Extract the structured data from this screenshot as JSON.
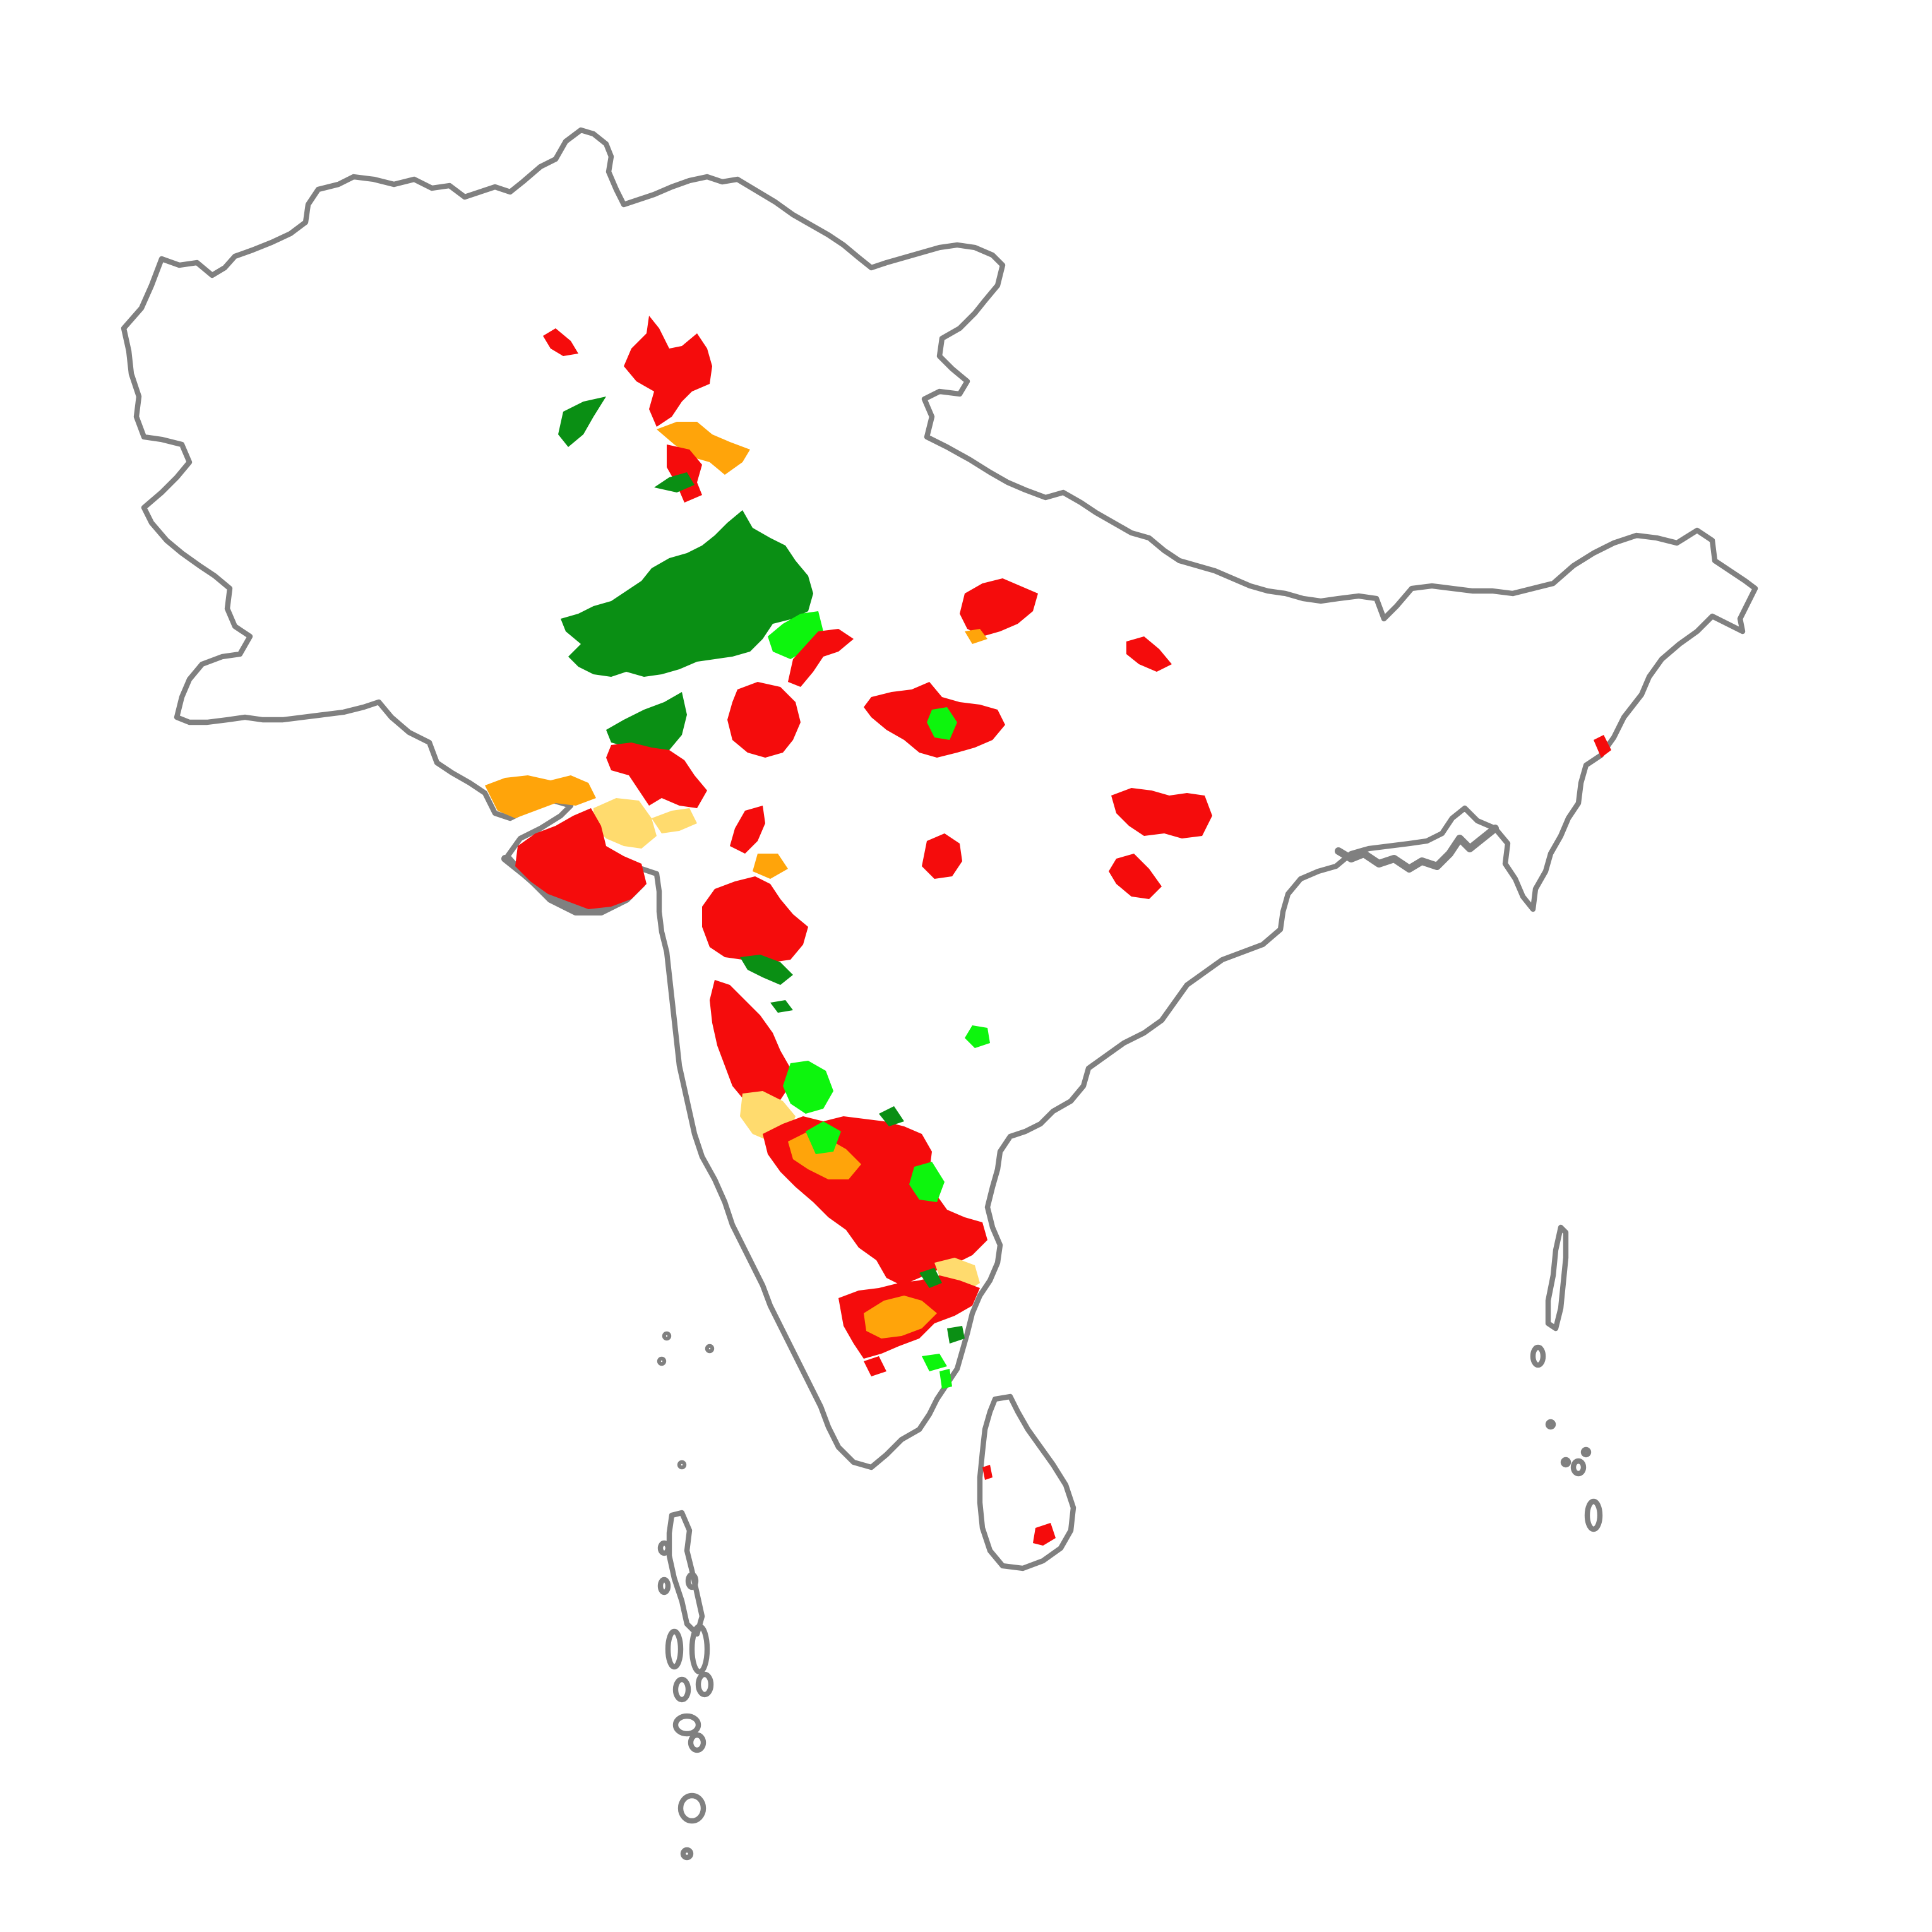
{
  "map": {
    "outline_color": "#808080",
    "background_color": "#ffffff"
  },
  "categories": [
    {
      "key": "dark-green",
      "color": "#0a8f14"
    },
    {
      "key": "bright-green",
      "color": "#0df50d"
    },
    {
      "key": "light-yellow",
      "color": "#ffdb6e"
    },
    {
      "key": "orange",
      "color": "#ffa40a"
    },
    {
      "key": "red",
      "color": "#f50c0c"
    }
  ]
}
